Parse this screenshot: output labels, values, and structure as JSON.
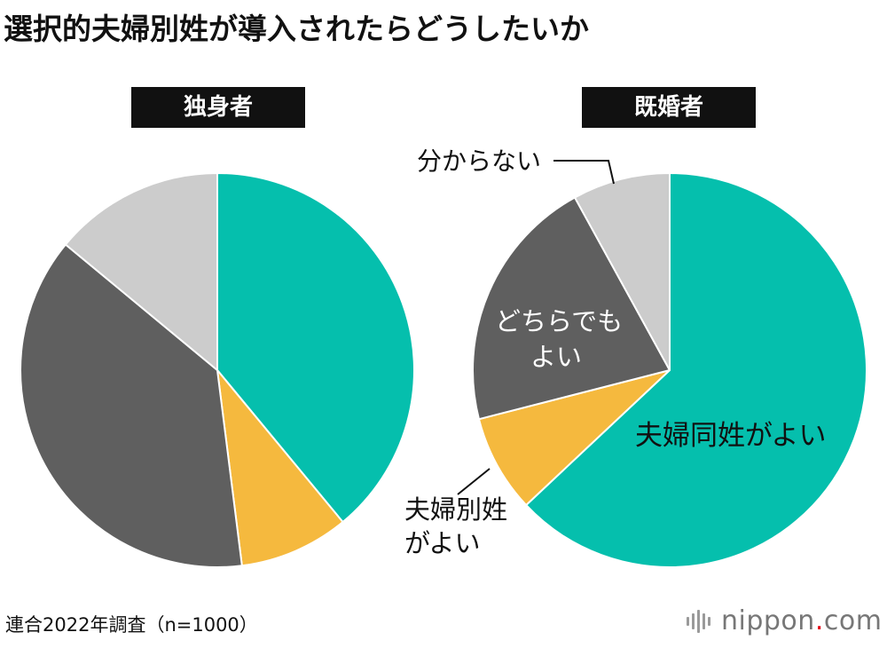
{
  "title": "選択的夫婦別姓が導入されたらどうしたいか",
  "source": "連合2022年調査（n=1000）",
  "logo": {
    "main": "nippon",
    "dot": ".",
    "suffix": "com",
    "icon": "nippon-logo-icon"
  },
  "colors": {
    "same": "#05bfad",
    "separate": "#f5b93e",
    "either": "#5f5f5f",
    "unknown": "#cccccc"
  },
  "chart_data": [
    {
      "type": "pie",
      "title": "独身者",
      "labels": [
        "夫婦同姓がよい",
        "夫婦別姓がよい",
        "どちらでもよい",
        "分からない"
      ],
      "values": [
        39,
        9,
        38,
        14
      ]
    },
    {
      "type": "pie",
      "title": "既婚者",
      "labels": [
        "夫婦同姓がよい",
        "夫婦別姓がよい",
        "どちらでもよい",
        "分からない"
      ],
      "values": [
        63,
        8,
        21,
        8
      ],
      "annotations": {
        "same": "夫婦同姓がよい",
        "separate_line1": "夫婦別姓",
        "separate_line2": "がよい",
        "either_line1": "どちらでも",
        "either_line2": "よい",
        "unknown": "分からない"
      }
    }
  ]
}
